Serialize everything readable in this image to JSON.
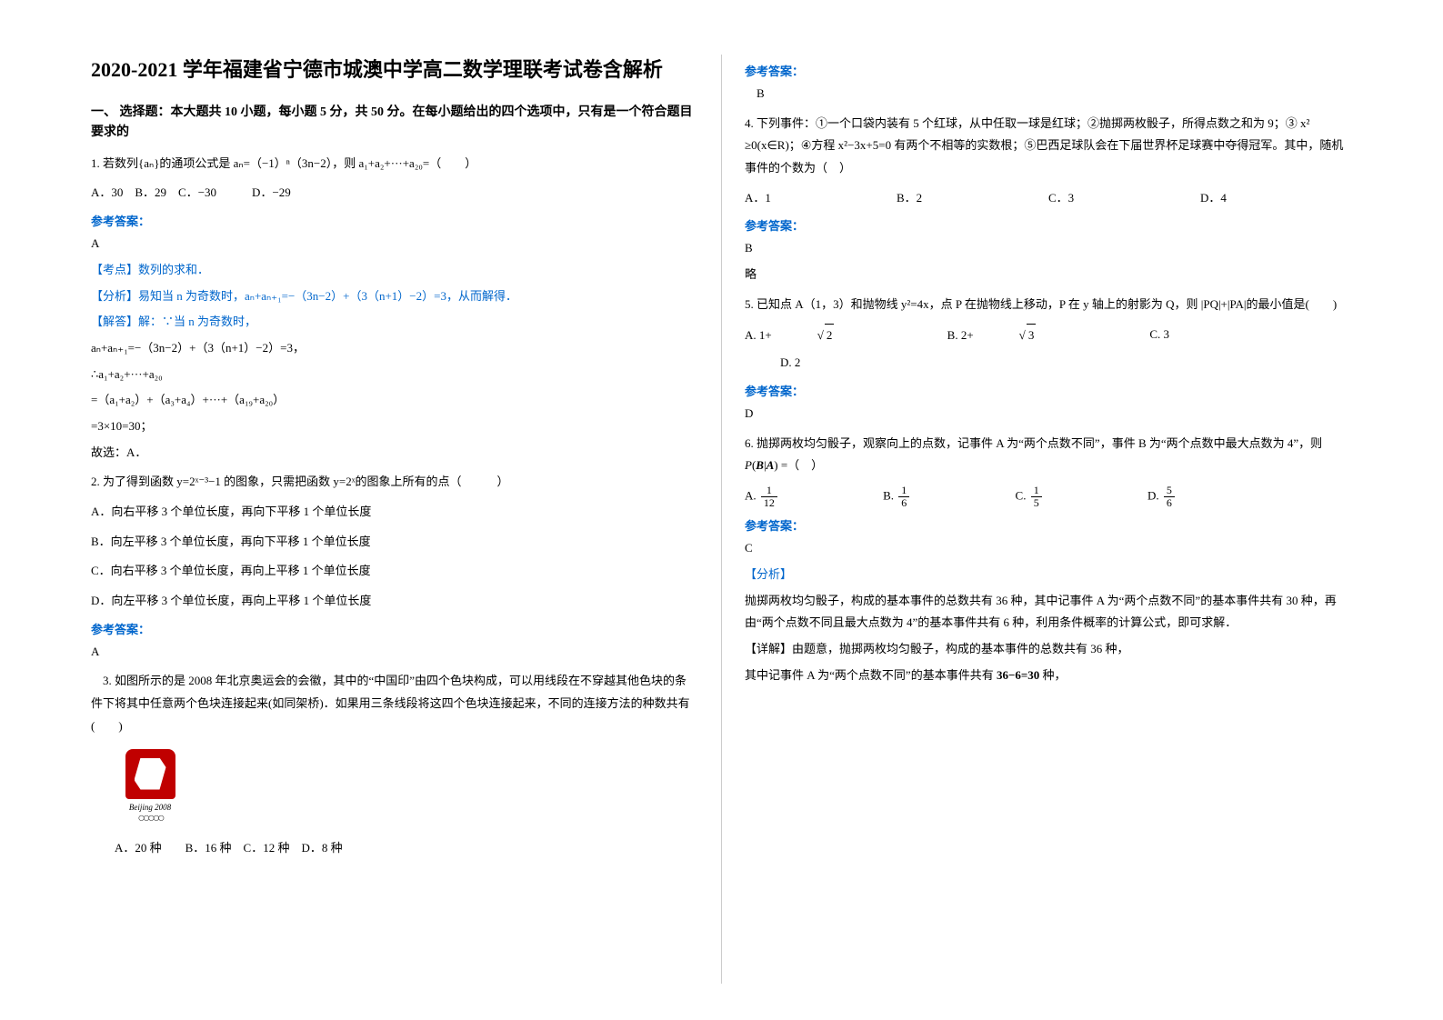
{
  "left": {
    "title": "2020-2021 学年福建省宁德市城澳中学高二数学理联考试卷含解析",
    "section_head": "一、 选择题：本大题共 10 小题，每小题 5 分，共 50 分。在每小题给出的四个选项中，只有是一个符合题目要求的",
    "q1": {
      "stem": "1. 若数列{aₙ}的通项公式是 aₙ=（−1）ⁿ（3n−2），则 a₁+a₂+···+a₂₀=（　　）",
      "opts": "A．30　B．29　C．−30　　　D．−29",
      "ans_label": "参考答案：",
      "ans_letter": "A",
      "line1": "【考点】数列的求和．",
      "line2": "【分析】易知当 n 为奇数时，aₙ+aₙ₊₁=−（3n−2）+（3（n+1）−2）=3，从而解得．",
      "line3": "【解答】解：∵当 n 为奇数时，",
      "line4": "aₙ+aₙ₊₁=−（3n−2）+（3（n+1）−2）=3，",
      "line5": "∴a₁+a₂+···+a₂₀",
      "line6": "=（a₁+a₂）+（a₃+a₄）+···+（a₁₉+a₂₀）",
      "line7": "=3×10=30；",
      "line8": "故选：A．"
    },
    "q2": {
      "stem": "2. 为了得到函数 y=2ˣ⁻³−1 的图象，只需把函数 y=2ˣ的图象上所有的点（　　　）",
      "a": "A．向右平移 3 个单位长度，再向下平移 1 个单位长度",
      "b": "B．向左平移 3 个单位长度，再向下平移 1 个单位长度",
      "c": "C．向右平移 3 个单位长度，再向上平移 1 个单位长度",
      "d": "D．向左平移 3 个单位长度，再向上平移 1 个单位长度",
      "ans_label": "参考答案：",
      "ans_letter": "A"
    },
    "q3": {
      "stem_line1": "　3. 如图所示的是 2008 年北京奥运会的会徽，其中的“中国印”由四个色块构成，可以用线段在不穿越其他色块的条件下将其中任意两个色块连接起来(如同架桥)．如果用三条线段将这四个色块连接起来，不同的连接方法的种数共有(　　)",
      "logo_text": "Beijing 2008",
      "opts": "　　A．20 种　　B．16 种　C．12 种　D．8 种"
    }
  },
  "right": {
    "q3_ans_label": "参考答案：",
    "q3_ans": "　B",
    "q4": {
      "stem": "4. 下列事件：①一个口袋内装有 5 个红球，从中任取一球是红球；②抛掷两枚骰子，所得点数之和为 9；③ x² ≥0(x∈R)；④方程 x²−3x+5=0 有两个不相等的实数根；⑤巴西足球队会在下届世界杯足球赛中夺得冠军。其中，随机事件的个数为（　）",
      "a": "A．1",
      "b": "B．2",
      "c": "C．3",
      "d": "D．4",
      "ans_label": "参考答案：",
      "ans_letter": "B",
      "extra": "略"
    },
    "q5": {
      "stem": "5. 已知点 A（1，3）和抛物线 y²=4x，点 P 在抛物线上移动，P 在 y 轴上的射影为 Q，则 |PQ|+|PA|的最小值是(　　)",
      "a_pre": "A. 1+",
      "a_rad": "2",
      "b_pre": "B. 2+",
      "b_rad": "3",
      "c": "C. 3",
      "d": "D. 2",
      "ans_label": "参考答案：",
      "ans_letter": "D"
    },
    "q6": {
      "stem_line1": "6. 抛掷两枚均匀骰子，观察向上的点数，记事件 A 为“两个点数不同”，事件 B 为“两个点数中最大点数为 4”，则",
      "stem_suffix": " =（　）",
      "a_n": "1",
      "a_d": "12",
      "b_n": "1",
      "b_d": "6",
      "c_n": "1",
      "c_d": "5",
      "d_n": "5",
      "d_d": "6",
      "ans_label": "参考答案：",
      "ans_letter": "C",
      "l1": "【分析】",
      "l2": "抛掷两枚均匀骰子，构成的基本事件的总数共有 36 种，其中记事件 A 为“两个点数不同”的基本事件共有 30 种，再由“两个点数不同且最大点数为 4”的基本事件共有 6 种，利用条件概率的计算公式，即可求解．",
      "l3": "【详解】由题意，抛掷两枚均匀骰子，构成的基本事件的总数共有 36 种，",
      "l4_pre": "其中记事件 A 为“两个点数不同”的基本事件共有 ",
      "l4_math": "36−6=30",
      "l4_post": " 种，"
    }
  },
  "colors": {
    "accent": "#0066cc",
    "text": "#000000",
    "bg": "#ffffff",
    "seal": "#c00000"
  }
}
